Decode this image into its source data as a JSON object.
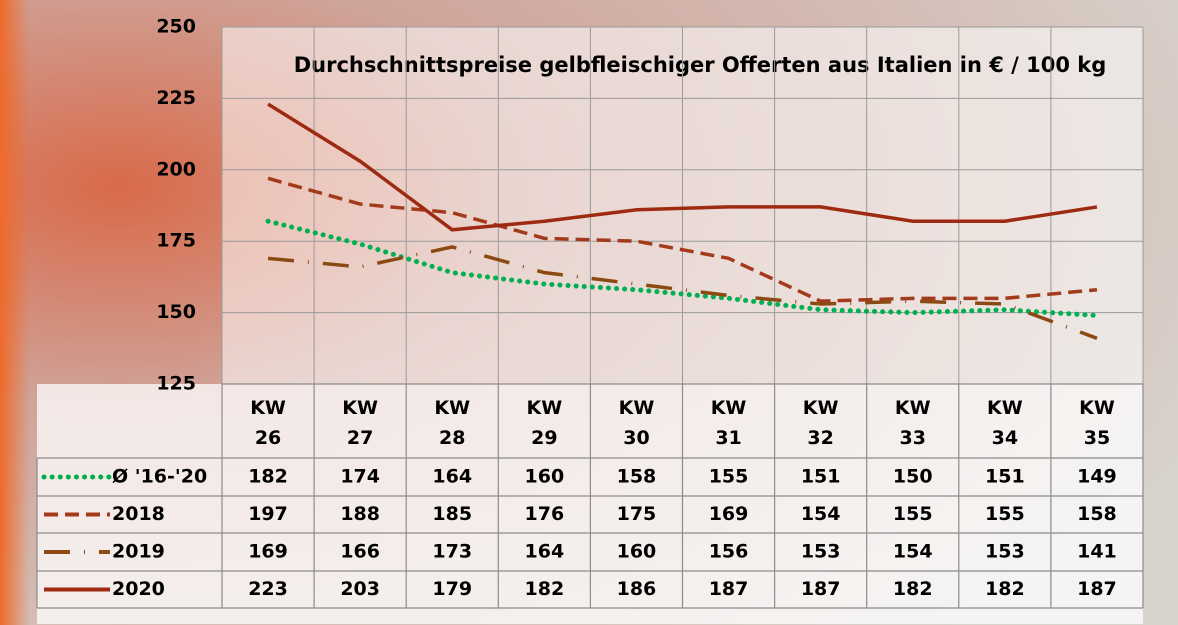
{
  "chart_data": {
    "type": "line",
    "title": "Durchschnittspreise gelbfleischiger Offerten aus Italien in € / 100 kg",
    "categories": [
      "KW 26",
      "KW 27",
      "KW 28",
      "KW 29",
      "KW 30",
      "KW 31",
      "KW 32",
      "KW 33",
      "KW 34",
      "KW 35"
    ],
    "series": [
      {
        "name": "Ø '16-'20",
        "color": "#00b050",
        "dash": "dotted",
        "values": [
          182,
          174,
          164,
          160,
          158,
          155,
          151,
          150,
          151,
          149
        ]
      },
      {
        "name": "2018",
        "color": "#a33a1c",
        "dash": "dashed",
        "values": [
          197,
          188,
          185,
          176,
          175,
          169,
          154,
          155,
          155,
          158
        ]
      },
      {
        "name": "2019",
        "color": "#8b4a12",
        "dash": "dashdot",
        "values": [
          169,
          166,
          173,
          164,
          160,
          156,
          153,
          154,
          153,
          141
        ]
      },
      {
        "name": "2020",
        "color": "#9e2a12",
        "dash": "solid",
        "values": [
          223,
          203,
          179,
          182,
          186,
          187,
          187,
          182,
          182,
          187
        ]
      }
    ],
    "ylim": [
      125,
      250
    ],
    "yticks": [
      125,
      150,
      175,
      200,
      225,
      250
    ],
    "grid": true
  }
}
